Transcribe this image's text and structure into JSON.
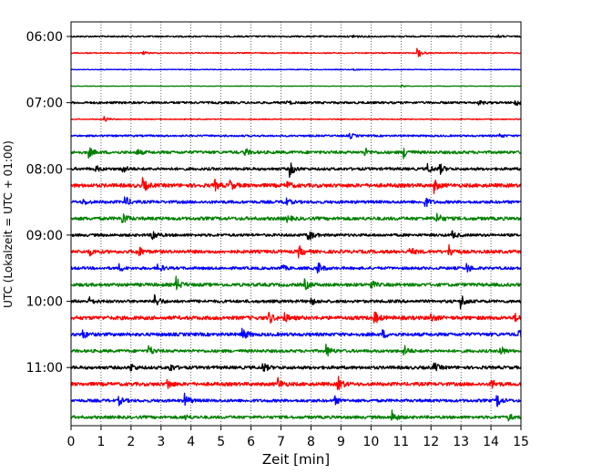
{
  "chart_data": {
    "type": "line",
    "chart_kind": "helicorder seismogram",
    "xlabel": "Zeit  [min]",
    "ylabel": "UTC (Lokalzeit = UTC + 01:00)",
    "xlim": [
      0,
      15
    ],
    "x_ticks": [
      "0",
      "1",
      "2",
      "3",
      "4",
      "5",
      "6",
      "7",
      "8",
      "9",
      "10",
      "11",
      "12",
      "13",
      "14",
      "15"
    ],
    "y_ticks": [
      "06:00",
      "07:00",
      "08:00",
      "09:00",
      "10:00",
      "11:00"
    ],
    "grid": "vertical dotted at each minute",
    "row_start": "06:00",
    "row_interval_min": 15,
    "row_colors": [
      "#000000",
      "#ff0000",
      "#0000ff",
      "#008000"
    ],
    "traces": [
      {
        "row": 0,
        "noise": 0.8,
        "events": [
          {
            "t": 9.4,
            "a": 2
          },
          {
            "t": 14.2,
            "a": 1.5
          }
        ]
      },
      {
        "row": 1,
        "noise": 0.6,
        "events": [
          {
            "t": 2.4,
            "a": 1.5
          },
          {
            "t": 11.55,
            "a": 6
          }
        ]
      },
      {
        "row": 2,
        "noise": 0.4,
        "events": [
          {
            "t": 9.4,
            "a": 1.5
          }
        ]
      },
      {
        "row": 3,
        "noise": 0.3,
        "events": [
          {
            "t": 11.0,
            "a": 1.5
          }
        ]
      },
      {
        "row": 4,
        "noise": 1.2,
        "events": [
          {
            "t": 7.2,
            "a": 2
          },
          {
            "t": 13.6,
            "a": 2
          },
          {
            "t": 14.8,
            "a": 4
          }
        ]
      },
      {
        "row": 5,
        "noise": 0.5,
        "events": [
          {
            "t": 1.1,
            "a": 3
          }
        ]
      },
      {
        "row": 6,
        "noise": 1.0,
        "events": [
          {
            "t": 9.3,
            "a": 3
          },
          {
            "t": 14.3,
            "a": 2
          }
        ]
      },
      {
        "row": 7,
        "noise": 1.6,
        "events": [
          {
            "t": 0.6,
            "a": 5
          },
          {
            "t": 2.2,
            "a": 3
          },
          {
            "t": 5.8,
            "a": 4
          },
          {
            "t": 9.8,
            "a": 4
          },
          {
            "t": 11.1,
            "a": 6
          }
        ]
      },
      {
        "row": 8,
        "noise": 1.5,
        "events": [
          {
            "t": 0.8,
            "a": 4
          },
          {
            "t": 1.7,
            "a": 5
          },
          {
            "t": 7.3,
            "a": 8
          },
          {
            "t": 11.9,
            "a": 5
          },
          {
            "t": 12.3,
            "a": 5
          }
        ]
      },
      {
        "row": 9,
        "noise": 2.0,
        "events": [
          {
            "t": 2.4,
            "a": 7
          },
          {
            "t": 4.8,
            "a": 5
          },
          {
            "t": 5.3,
            "a": 5
          },
          {
            "t": 7.2,
            "a": 4
          },
          {
            "t": 12.1,
            "a": 7
          }
        ]
      },
      {
        "row": 10,
        "noise": 1.6,
        "events": [
          {
            "t": 0.4,
            "a": 3
          },
          {
            "t": 1.8,
            "a": 6
          },
          {
            "t": 7.1,
            "a": 6
          },
          {
            "t": 11.8,
            "a": 6
          }
        ]
      },
      {
        "row": 11,
        "noise": 1.8,
        "events": [
          {
            "t": 1.7,
            "a": 7
          },
          {
            "t": 7.2,
            "a": 3
          },
          {
            "t": 12.2,
            "a": 6
          }
        ]
      },
      {
        "row": 12,
        "noise": 1.5,
        "events": [
          {
            "t": 2.7,
            "a": 7
          },
          {
            "t": 7.9,
            "a": 8
          },
          {
            "t": 12.7,
            "a": 4
          }
        ]
      },
      {
        "row": 13,
        "noise": 1.8,
        "events": [
          {
            "t": 0.6,
            "a": 4
          },
          {
            "t": 2.2,
            "a": 8
          },
          {
            "t": 7.6,
            "a": 6
          },
          {
            "t": 11.3,
            "a": 4
          },
          {
            "t": 12.6,
            "a": 7
          }
        ]
      },
      {
        "row": 14,
        "noise": 1.5,
        "events": [
          {
            "t": 1.6,
            "a": 4
          },
          {
            "t": 2.9,
            "a": 5
          },
          {
            "t": 7.0,
            "a": 4
          },
          {
            "t": 8.2,
            "a": 8
          },
          {
            "t": 13.2,
            "a": 5
          }
        ]
      },
      {
        "row": 15,
        "noise": 1.8,
        "events": [
          {
            "t": 3.5,
            "a": 8
          },
          {
            "t": 7.8,
            "a": 5
          },
          {
            "t": 10.0,
            "a": 4
          }
        ]
      },
      {
        "row": 16,
        "noise": 1.6,
        "events": [
          {
            "t": 0.6,
            "a": 4
          },
          {
            "t": 2.8,
            "a": 8
          },
          {
            "t": 8.0,
            "a": 4
          },
          {
            "t": 13.0,
            "a": 8
          }
        ]
      },
      {
        "row": 17,
        "noise": 2.0,
        "events": [
          {
            "t": 6.6,
            "a": 6
          },
          {
            "t": 7.1,
            "a": 5
          },
          {
            "t": 10.1,
            "a": 8
          },
          {
            "t": 12.0,
            "a": 4
          },
          {
            "t": 14.8,
            "a": 4
          }
        ]
      },
      {
        "row": 18,
        "noise": 1.8,
        "events": [
          {
            "t": 0.4,
            "a": 4
          },
          {
            "t": 5.7,
            "a": 8
          },
          {
            "t": 10.4,
            "a": 4
          },
          {
            "t": 14.9,
            "a": 5
          }
        ]
      },
      {
        "row": 19,
        "noise": 1.6,
        "events": [
          {
            "t": 2.6,
            "a": 6
          },
          {
            "t": 8.5,
            "a": 7
          },
          {
            "t": 11.1,
            "a": 6
          },
          {
            "t": 14.3,
            "a": 6
          }
        ]
      },
      {
        "row": 20,
        "noise": 1.7,
        "events": [
          {
            "t": 2.0,
            "a": 4
          },
          {
            "t": 3.3,
            "a": 4
          },
          {
            "t": 6.4,
            "a": 5
          },
          {
            "t": 12.1,
            "a": 5
          }
        ]
      },
      {
        "row": 21,
        "noise": 1.9,
        "events": [
          {
            "t": 3.2,
            "a": 6
          },
          {
            "t": 6.9,
            "a": 6
          },
          {
            "t": 8.9,
            "a": 8
          },
          {
            "t": 14.0,
            "a": 6
          }
        ]
      },
      {
        "row": 22,
        "noise": 1.6,
        "events": [
          {
            "t": 1.6,
            "a": 4
          },
          {
            "t": 3.8,
            "a": 7
          },
          {
            "t": 8.8,
            "a": 4
          },
          {
            "t": 14.2,
            "a": 7
          }
        ]
      },
      {
        "row": 23,
        "noise": 1.6,
        "events": [
          {
            "t": 3.8,
            "a": 3
          },
          {
            "t": 10.7,
            "a": 7
          },
          {
            "t": 14.6,
            "a": 3
          }
        ]
      }
    ]
  }
}
